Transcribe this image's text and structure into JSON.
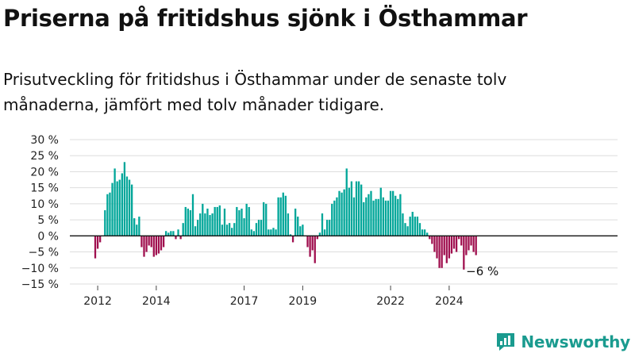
{
  "header": {
    "title": "Priserna på fritidshus sjönk i Östhammar",
    "subtitle": "Prisutveckling för fritidshus i Östhammar under de senaste tolv månaderna, jämfört med tolv månader tidigare."
  },
  "brand": {
    "name": "Newsworthy"
  },
  "colors": {
    "positive": "#00a699",
    "negative": "#a0104f",
    "grid": "#dddddd",
    "axis": "#111111",
    "brand": "#1a9b8f"
  },
  "chart_data": {
    "type": "bar",
    "title": "Priserna på fritidshus sjönk i Östhammar",
    "subtitle": "Prisutveckling för fritidshus i Östhammar under de senaste tolv månaderna, jämfört med tolv månader tidigare.",
    "xlabel": "",
    "ylabel": "",
    "ylim": [
      -15,
      30
    ],
    "y_ticks": [
      30,
      25,
      20,
      15,
      10,
      5,
      0,
      -5,
      -10,
      -15
    ],
    "y_tick_labels": [
      "30 %",
      "25 %",
      "20 %",
      "15 %",
      "10 %",
      "5 %",
      "0 %",
      "−5 %",
      "−10 %",
      "−15 %"
    ],
    "x_ticks": [
      {
        "label": "2012",
        "index": 1
      },
      {
        "label": "2014",
        "index": 25
      },
      {
        "label": "2017",
        "index": 61
      },
      {
        "label": "2019",
        "index": 85
      },
      {
        "label": "2022",
        "index": 121
      },
      {
        "label": "2024",
        "index": 145
      }
    ],
    "grid": true,
    "legend": "none",
    "annotation": {
      "text": "−6 %",
      "index": 156
    },
    "values": [
      -7,
      -4,
      -2,
      0,
      8,
      13,
      13.5,
      16.5,
      21,
      17,
      17.5,
      19.5,
      23,
      18.5,
      17.5,
      16,
      5.5,
      3.5,
      6,
      -3.5,
      -6.5,
      -5,
      -3,
      -3.5,
      -6.5,
      -6,
      -5.5,
      -4.5,
      -3.5,
      1.5,
      1,
      1.5,
      1.5,
      -1,
      2,
      -1,
      4,
      9,
      8.5,
      8,
      13,
      3,
      5,
      7,
      10,
      7,
      8.5,
      6.5,
      7,
      9,
      9,
      9.5,
      3.5,
      8.5,
      3.5,
      4,
      2.5,
      4,
      9,
      8,
      8.5,
      5.5,
      10,
      9,
      2,
      1.5,
      4,
      5,
      5,
      10.5,
      10,
      2,
      2,
      2.5,
      2,
      12,
      12,
      13.5,
      12.5,
      7,
      0.5,
      -2,
      8.5,
      6,
      3,
      3.5,
      0,
      -3.5,
      -6.5,
      -4.5,
      -8.5,
      -1,
      1,
      7,
      2,
      5,
      5,
      10,
      11,
      12,
      14,
      13.5,
      14.5,
      21,
      15,
      17,
      12,
      17,
      17,
      16,
      10.5,
      12,
      13,
      14,
      11,
      11.5,
      11.5,
      15,
      12,
      11,
      11,
      14,
      14,
      12.5,
      11.5,
      13,
      7,
      4,
      3,
      6,
      7.5,
      6,
      6,
      4,
      2,
      2,
      1,
      -1,
      -2.5,
      -5,
      -7,
      -10,
      -10,
      -6,
      -8.5,
      -7,
      -5.5,
      -4,
      -5,
      -1,
      -3,
      -10.5,
      -6,
      -4.5,
      -3,
      -5,
      -6
    ]
  }
}
